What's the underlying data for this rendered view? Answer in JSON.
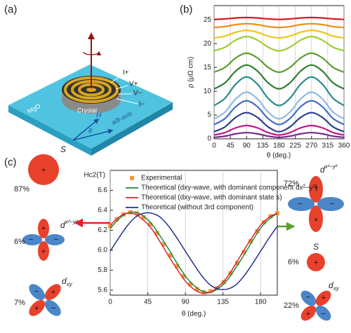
{
  "panels": {
    "a": "(a)",
    "b": "(b)",
    "c": "(c)"
  },
  "schematic": {
    "current_in": "I+",
    "voltage_plus": "V+",
    "voltage_minus": "V−",
    "current_out": "I−",
    "crystal": "Crystal",
    "substrate": "MgO",
    "field": "H",
    "angle": "θ",
    "axis": "a/b-axis"
  },
  "signs": {
    "plus": "+",
    "minus": "−"
  },
  "orbitals": {
    "left": [
      {
        "symbol": "S",
        "percent": "87%"
      },
      {
        "symbol": "d",
        "subscript": "x²−y²",
        "percent": "6%"
      },
      {
        "symbol": "d",
        "subscript": "xy",
        "percent": "7%"
      }
    ],
    "right": [
      {
        "symbol": "d",
        "subscript": "x²−y²",
        "percent": "72%"
      },
      {
        "symbol": "S",
        "percent": "6%"
      },
      {
        "symbol": "d",
        "subscript": "xy",
        "percent": "22%"
      }
    ]
  },
  "chart_data": [
    {
      "type": "line",
      "xlabel": "θ (deg.)",
      "ylabel": "ρ (μΩ cm)",
      "x": [
        0,
        30,
        60,
        90,
        120,
        150,
        180,
        210,
        240,
        270,
        300,
        330,
        360
      ],
      "xlim": [
        0,
        360
      ],
      "xticks": [
        0,
        45,
        90,
        135,
        180,
        225,
        270,
        315,
        360
      ],
      "ylim": [
        0,
        28
      ],
      "yticks": [
        0,
        5,
        10,
        15,
        20,
        25
      ],
      "grid": "x",
      "series": [
        {
          "color": "#7b2a8c",
          "values": [
            0.3,
            0.55,
            1.05,
            1.3,
            1.05,
            0.55,
            0.3,
            0.55,
            1.05,
            1.3,
            1.05,
            0.55,
            0.3
          ]
        },
        {
          "color": "#c2188b",
          "values": [
            0.8,
            1.3,
            2.3,
            2.8,
            2.3,
            1.3,
            0.8,
            1.3,
            2.3,
            2.8,
            2.3,
            1.3,
            0.8
          ]
        },
        {
          "color": "#2c3f8f",
          "values": [
            1.5,
            2.5,
            4.5,
            5.5,
            4.5,
            2.5,
            1.5,
            2.5,
            4.5,
            5.5,
            4.5,
            2.5,
            1.5
          ]
        },
        {
          "color": "#3f6fc4",
          "values": [
            3,
            4.25,
            6.75,
            8,
            6.75,
            4.25,
            3,
            4.25,
            6.75,
            8,
            6.75,
            4.25,
            3
          ]
        },
        {
          "color": "#8fb8e8",
          "values": [
            4.2,
            5.6,
            8.4,
            9.8,
            8.4,
            5.6,
            4.2,
            5.6,
            8.4,
            9.8,
            8.4,
            5.6,
            4.2
          ]
        },
        {
          "color": "#2a8c8c",
          "values": [
            7,
            8.5,
            11.5,
            13,
            11.5,
            8.5,
            7,
            8.5,
            11.5,
            13,
            11.5,
            8.5,
            7
          ]
        },
        {
          "color": "#2e7d32",
          "values": [
            10.5,
            11.75,
            14.25,
            15.5,
            14.25,
            11.75,
            10.5,
            11.75,
            14.25,
            15.5,
            14.25,
            11.75,
            10.5
          ]
        },
        {
          "color": "#5aa02c",
          "values": [
            14,
            15,
            17,
            18,
            17,
            15,
            14,
            15,
            17,
            18,
            17,
            15,
            14
          ]
        },
        {
          "color": "#9acd32",
          "values": [
            18.5,
            19.25,
            20.75,
            21.5,
            20.75,
            19.25,
            18.5,
            19.25,
            20.75,
            21.5,
            20.75,
            19.25,
            18.5
          ]
        },
        {
          "color": "#e8c820",
          "values": [
            21.2,
            21.6,
            22.4,
            22.8,
            22.4,
            21.6,
            21.2,
            21.6,
            22.4,
            22.8,
            22.4,
            21.6,
            21.2
          ]
        },
        {
          "color": "#f08c1e",
          "values": [
            23.4,
            23.6,
            24,
            24.2,
            24,
            23.6,
            23.4,
            23.6,
            24,
            24.2,
            24,
            23.6,
            23.4
          ]
        },
        {
          "color": "#d7191c",
          "values": [
            25.1,
            25.2,
            25.4,
            25.5,
            25.4,
            25.2,
            25.1,
            25.2,
            25.4,
            25.5,
            25.4,
            25.2,
            25.1
          ]
        }
      ]
    },
    {
      "type": "line",
      "xlabel": "θ (deg.)",
      "ylabel": "Hc2(T)",
      "xlim": [
        0,
        200
      ],
      "xticks": [
        0,
        45,
        90,
        135,
        180
      ],
      "ylim": [
        5.55,
        6.8
      ],
      "yticks": [
        5.6,
        5.8,
        {
          "value": 6,
          "label": "6.0"
        },
        6.2,
        6.4,
        6.6
      ],
      "grid": "x",
      "legend": "upper left",
      "series": [
        {
          "name": "Experimental",
          "type": "scatter",
          "color": "#f39a3c",
          "x": [
            0,
            8,
            16,
            24,
            32,
            40,
            48,
            56,
            64,
            72,
            80,
            88,
            96,
            104,
            112,
            120,
            128,
            136,
            144,
            152,
            160,
            168,
            176,
            184,
            192,
            200
          ],
          "values": [
            6.24,
            6.31,
            6.36,
            6.38,
            6.37,
            6.33,
            6.26,
            6.17,
            6.06,
            5.95,
            5.84,
            5.74,
            5.66,
            5.61,
            5.58,
            5.59,
            5.62,
            5.68,
            5.77,
            5.87,
            5.98,
            6.09,
            6.19,
            6.28,
            6.34,
            6.37
          ]
        },
        {
          "name": "Theoretical (dxy-wave, with dominant component dx²−y²)",
          "color": "#1e8a3c",
          "x": [
            0,
            10,
            20,
            30,
            40,
            50,
            60,
            70,
            80,
            90,
            100,
            110,
            120,
            130,
            140,
            150,
            160,
            170,
            180,
            190,
            200
          ],
          "values": [
            6.22,
            6.31,
            6.37,
            6.38,
            6.34,
            6.26,
            6.14,
            6.01,
            5.87,
            5.74,
            5.65,
            5.59,
            5.58,
            5.62,
            5.7,
            5.82,
            5.95,
            6.09,
            6.22,
            6.31,
            6.37
          ]
        },
        {
          "name": "Theoretical (dxy-wave, with dominant state s)",
          "color": "#e0202a",
          "x": [
            0,
            10,
            20,
            30,
            40,
            50,
            60,
            70,
            80,
            90,
            100,
            110,
            120,
            130,
            140,
            150,
            160,
            170,
            180,
            190,
            200
          ],
          "values": [
            6.25,
            6.33,
            6.37,
            6.36,
            6.3,
            6.21,
            6.08,
            5.94,
            5.81,
            5.69,
            5.61,
            5.57,
            5.58,
            5.64,
            5.73,
            5.86,
            6.0,
            6.13,
            6.25,
            6.33,
            6.37
          ]
        },
        {
          "name": "Theoretical (without 3rd component)",
          "color": "#23308f",
          "x": [
            0,
            10,
            20,
            30,
            40,
            50,
            60,
            70,
            80,
            90,
            100,
            110,
            120,
            130,
            140,
            150,
            160,
            170,
            180,
            190,
            200
          ],
          "values": [
            5.99,
            6.12,
            6.24,
            6.33,
            6.37,
            6.37,
            6.33,
            6.24,
            6.12,
            5.99,
            5.86,
            5.74,
            5.65,
            5.61,
            5.61,
            5.65,
            5.74,
            5.86,
            5.99,
            6.12,
            6.24
          ]
        }
      ]
    }
  ]
}
